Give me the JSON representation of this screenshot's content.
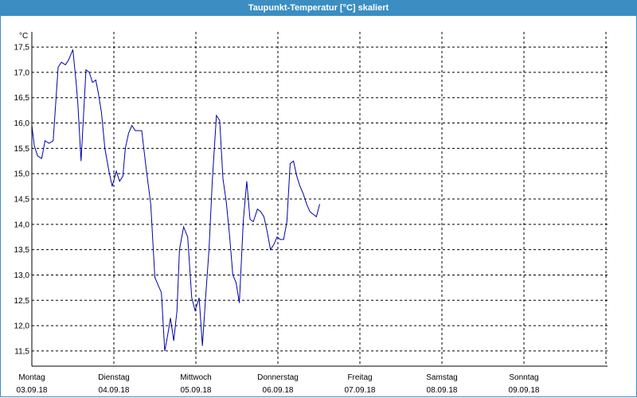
{
  "window": {
    "title": "Taupunkt-Temperatur [°C] skaliert"
  },
  "chart_data": {
    "type": "line",
    "title": "Taupunkt-Temperatur [°C] skaliert",
    "ylabel": "°C",
    "ylim": [
      11.2,
      17.8
    ],
    "yticks": [
      11.5,
      12.0,
      12.5,
      13.0,
      13.5,
      14.0,
      14.5,
      15.0,
      15.5,
      16.0,
      16.5,
      17.0,
      17.5
    ],
    "ytick_labels": [
      "11,5",
      "12,0",
      "12,5",
      "13,0",
      "13,5",
      "14,0",
      "14,5",
      "15,0",
      "15,5",
      "16,0",
      "16,5",
      "17,0",
      "17,5"
    ],
    "xlim": [
      0,
      7
    ],
    "x_days": [
      {
        "day": "Montag",
        "date": "03.09.18"
      },
      {
        "day": "Dienstag",
        "date": "04.09.18"
      },
      {
        "day": "Mittwoch",
        "date": "05.09.18"
      },
      {
        "day": "Donnerstag",
        "date": "06.09.18"
      },
      {
        "day": "Freitag",
        "date": "07.09.18"
      },
      {
        "day": "Samstag",
        "date": "08.09.18"
      },
      {
        "day": "Sonntag",
        "date": "09.09.18"
      }
    ],
    "grid": true,
    "x_unit": "days since Monday 03.09.18 00:00",
    "series": [
      {
        "color": "#0000aa",
        "x": [
          0.0,
          0.03,
          0.07,
          0.12,
          0.16,
          0.21,
          0.26,
          0.32,
          0.36,
          0.41,
          0.45,
          0.5,
          0.54,
          0.56,
          0.6,
          0.66,
          0.7,
          0.74,
          0.78,
          0.81,
          0.85,
          0.89,
          0.94,
          0.98,
          1.03,
          1.07,
          1.11,
          1.14,
          1.18,
          1.22,
          1.26,
          1.3,
          1.34,
          1.39,
          1.45,
          1.5,
          1.54,
          1.58,
          1.62,
          1.65,
          1.69,
          1.73,
          1.77,
          1.8,
          1.85,
          1.9,
          1.95,
          1.99,
          2.04,
          2.08,
          2.12,
          2.16,
          2.2,
          2.25,
          2.29,
          2.33,
          2.37,
          2.41,
          2.45,
          2.49,
          2.53,
          2.58,
          2.62,
          2.66,
          2.7,
          2.75,
          2.79,
          2.83,
          2.87,
          2.91,
          2.95,
          2.99,
          3.03,
          3.07,
          3.11,
          3.15,
          3.19,
          3.23,
          3.27,
          3.31,
          3.35,
          3.39,
          3.43,
          3.47,
          3.51
        ],
        "y": [
          15.95,
          15.55,
          15.35,
          15.3,
          15.65,
          15.6,
          15.65,
          17.1,
          17.2,
          17.15,
          17.25,
          17.45,
          16.8,
          16.4,
          15.25,
          17.05,
          17.0,
          16.8,
          16.85,
          16.6,
          16.2,
          15.5,
          15.05,
          14.75,
          15.05,
          14.85,
          14.95,
          15.5,
          15.8,
          15.95,
          15.85,
          15.85,
          15.85,
          15.15,
          14.4,
          12.95,
          12.8,
          12.65,
          11.5,
          11.75,
          12.15,
          11.7,
          12.3,
          13.5,
          13.95,
          13.75,
          12.55,
          12.3,
          12.55,
          11.6,
          12.6,
          13.5,
          14.85,
          16.15,
          16.05,
          14.9,
          14.45,
          13.8,
          13.0,
          12.85,
          12.45,
          14.1,
          14.85,
          14.1,
          14.05,
          14.3,
          14.25,
          14.15,
          13.85,
          13.5,
          13.6,
          13.75,
          13.7,
          13.7,
          14.05,
          15.2,
          15.25,
          14.95,
          14.75,
          14.6,
          14.4,
          14.25,
          14.2,
          14.15,
          14.4
        ]
      }
    ]
  }
}
